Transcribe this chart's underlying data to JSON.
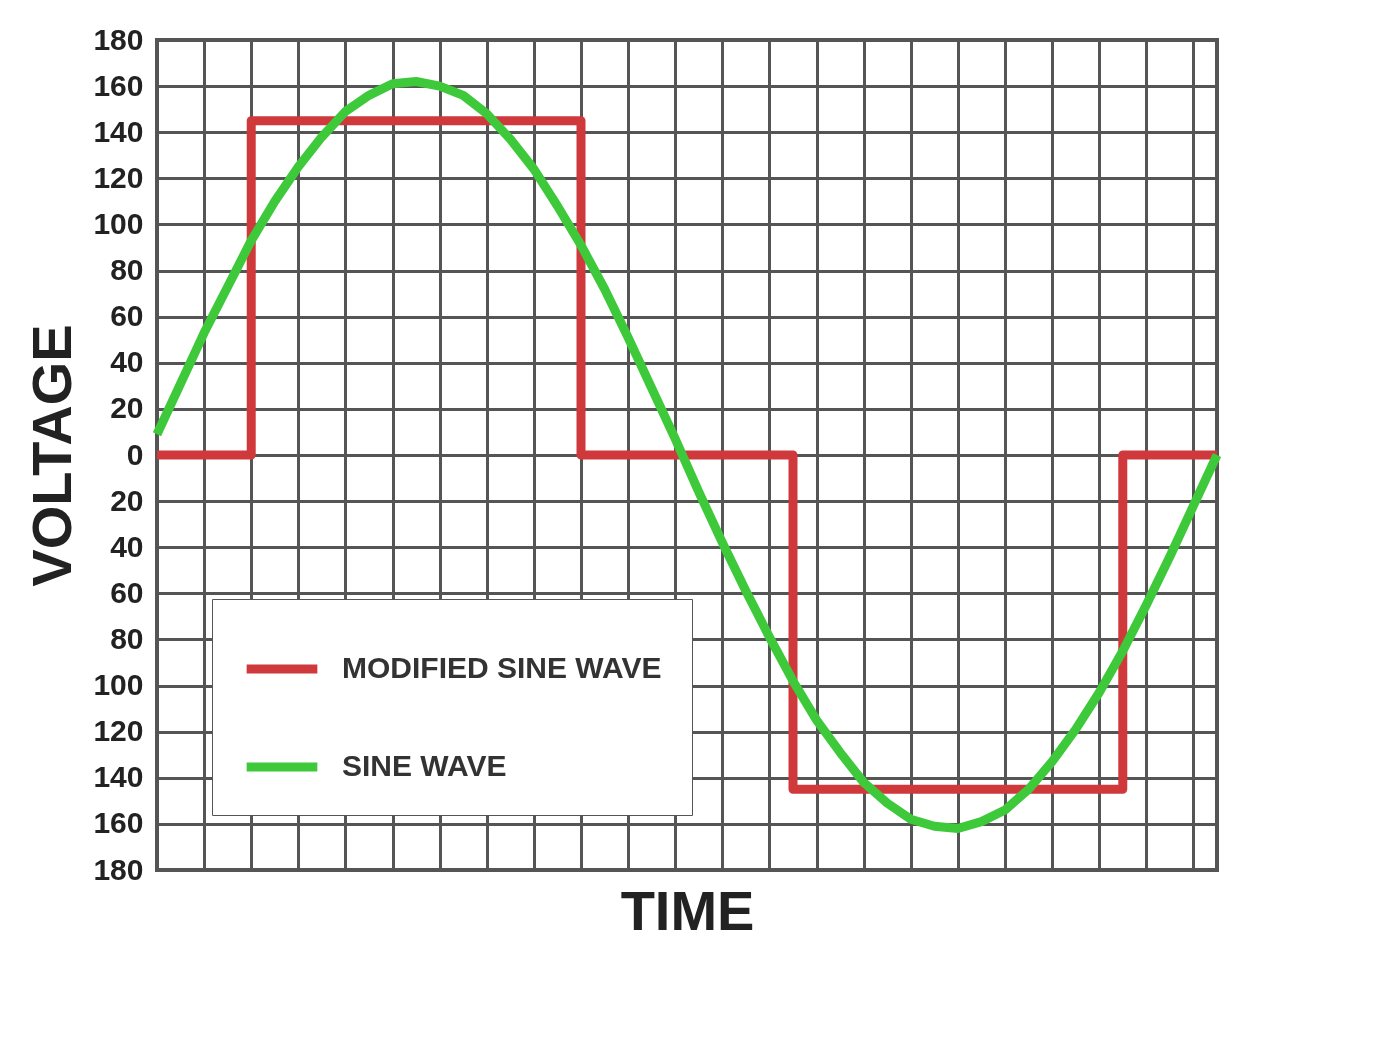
{
  "chart_data": {
    "type": "line",
    "xlabel": "TIME",
    "ylabel": "VOLTAGE",
    "categories": [
      null,
      null,
      null,
      null,
      null,
      null,
      null,
      null,
      null,
      null,
      null,
      null,
      null,
      null,
      null,
      null,
      null,
      null,
      null,
      null,
      null,
      null,
      null,
      null,
      null,
      null,
      null,
      null,
      null,
      null,
      null,
      null,
      null,
      null,
      null,
      null,
      null,
      null,
      null,
      null,
      null,
      null,
      null,
      null,
      null,
      null
    ],
    "series": [
      {
        "name": "MODIFIED SINE WAVE",
        "type": "step",
        "color": "#d0393b",
        "values": [
          0,
          0,
          0,
          0,
          145,
          145,
          145,
          145,
          145,
          145,
          145,
          145,
          145,
          145,
          145,
          145,
          145,
          145,
          0,
          0,
          0,
          0,
          0,
          0,
          0,
          0,
          0,
          -145,
          -145,
          -145,
          -145,
          -145,
          -145,
          -145,
          -145,
          -145,
          -145,
          -145,
          -145,
          -145,
          -145,
          0,
          0,
          0,
          0,
          0
        ]
      },
      {
        "name": "SINE WAVE",
        "color": "#3ec93a",
        "values": [
          9,
          31,
          53,
          73,
          93,
          110,
          125,
          138,
          149,
          156,
          161,
          162,
          160,
          156,
          148,
          137,
          124,
          108,
          91,
          72,
          51,
          29,
          7,
          -16,
          -38,
          -59,
          -79,
          -98,
          -115,
          -129,
          -142,
          -151,
          -158,
          -161,
          -162,
          -159,
          -154,
          -145,
          -133,
          -119,
          -103,
          -85,
          -65,
          -44,
          -22,
          0
        ]
      }
    ],
    "ylim": [
      -180,
      180
    ],
    "yticks": [
      {
        "value": -180,
        "label": "180"
      },
      {
        "value": -160,
        "label": "160"
      },
      {
        "value": -140,
        "label": "140"
      },
      {
        "value": -120,
        "label": "120"
      },
      {
        "value": -100,
        "label": "100"
      },
      {
        "value": -80,
        "label": "80"
      },
      {
        "value": -60,
        "label": "60"
      },
      {
        "value": -40,
        "label": "40"
      },
      {
        "value": -20,
        "label": "20"
      },
      0,
      20,
      40,
      60,
      80,
      100,
      120,
      140,
      160,
      180
    ],
    "grid": true,
    "legend": "bottom left",
    "tick_labels": "y"
  }
}
